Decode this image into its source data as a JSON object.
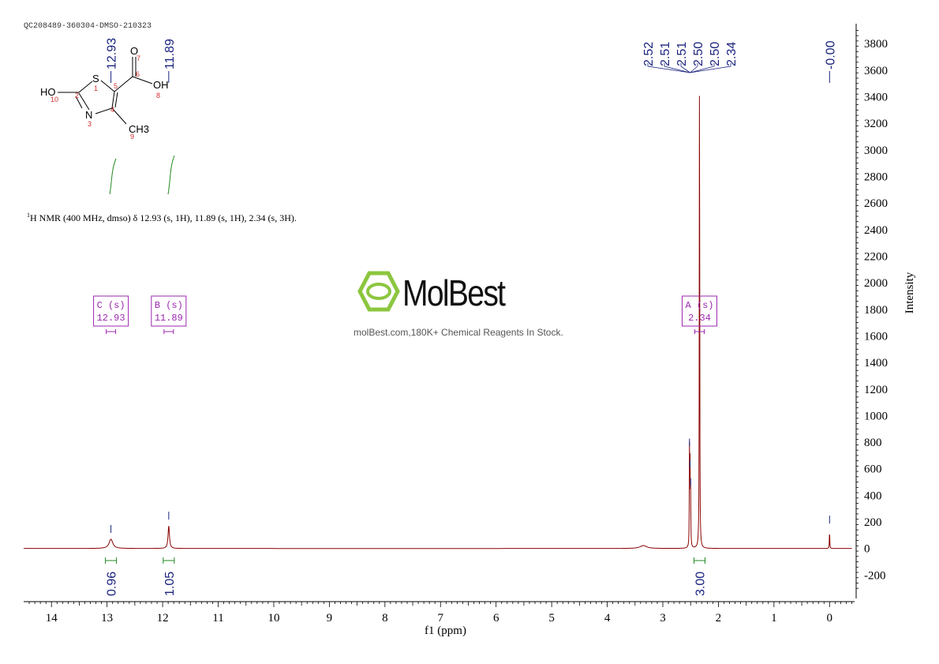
{
  "header": {
    "sample_id": "QC208489-360304-DMSO-210323",
    "nmr_description_prefix": "1",
    "nmr_description": "H NMR (400 MHz, dmso) δ 12.93 (s, 1H), 11.89 (s, 1H), 2.34 (s, 3H)."
  },
  "watermark": {
    "brand": "MolBest",
    "tagline": "molBest.com,180K+ Chemical Reagents In Stock.",
    "logo_color": "#8cc63f"
  },
  "structure": {
    "atoms": [
      "S",
      "HO",
      "N",
      "CH3",
      "O",
      "OH"
    ],
    "numbering": [
      "1",
      "2",
      "3",
      "4",
      "5",
      "6",
      "7",
      "8",
      "9",
      "10"
    ]
  },
  "colors": {
    "spectrum": "#8b0000",
    "peak_labels": "#1a237e",
    "integrals": "#228b22",
    "multiplet_boxes": "#9c27b0",
    "axis": "#000000"
  },
  "chart_data": {
    "type": "line",
    "xlabel": "f1 (ppm)",
    "ylabel": "Intensity",
    "xlim": [
      14.5,
      -0.45
    ],
    "ylim": [
      -400,
      3950
    ],
    "x_ticks": [
      14,
      13,
      12,
      11,
      10,
      9,
      8,
      7,
      6,
      5,
      4,
      3,
      2,
      1,
      0
    ],
    "y_ticks": [
      -200,
      0,
      200,
      400,
      600,
      800,
      1000,
      1200,
      1400,
      1600,
      1800,
      2000,
      2200,
      2400,
      2600,
      2800,
      3000,
      3200,
      3400,
      3600,
      3800
    ],
    "peaks": [
      {
        "ppm": 12.93,
        "height": 70,
        "width": 0.04
      },
      {
        "ppm": 11.89,
        "height": 170,
        "width": 0.015
      },
      {
        "ppm": 3.35,
        "height": 22,
        "width": 0.07
      },
      {
        "ppm": 2.52,
        "height": 720,
        "width": 0.004
      },
      {
        "ppm": 2.51,
        "height": 560,
        "width": 0.004
      },
      {
        "ppm": 2.5,
        "height": 420,
        "width": 0.004
      },
      {
        "ppm": 2.34,
        "height": 3950,
        "width": 0.004
      },
      {
        "ppm": 0.0,
        "height": 140,
        "width": 0.004
      }
    ],
    "peak_labels": [
      "12.93",
      "11.89",
      "2.52",
      "2.51",
      "2.51",
      "2.50",
      "2.50",
      "2.34",
      "-0.00"
    ],
    "peak_label_ppm": [
      12.93,
      11.89,
      2.52,
      2.51,
      2.51,
      2.5,
      2.5,
      2.34,
      0.0
    ],
    "integrals": [
      {
        "ppm": 12.93,
        "value": "0.96"
      },
      {
        "ppm": 11.89,
        "value": "1.05"
      },
      {
        "ppm": 2.34,
        "value": "3.00"
      }
    ],
    "multiplets": [
      {
        "label": "C (s)",
        "shift": "12.93",
        "ppm": 12.93
      },
      {
        "label": "B (s)",
        "shift": "11.89",
        "ppm": 11.89
      },
      {
        "label": "A (s)",
        "shift": "2.34",
        "ppm": 2.34
      }
    ]
  }
}
